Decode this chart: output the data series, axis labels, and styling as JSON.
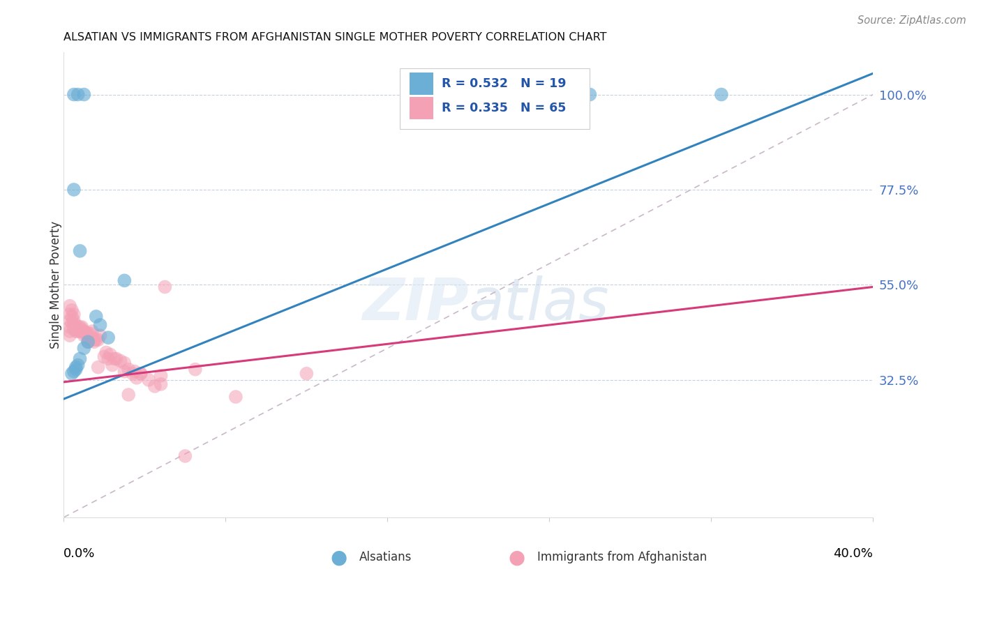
{
  "title": "ALSATIAN VS IMMIGRANTS FROM AFGHANISTAN SINGLE MOTHER POVERTY CORRELATION CHART",
  "source": "Source: ZipAtlas.com",
  "ylabel": "Single Mother Poverty",
  "ytick_vals": [
    0.325,
    0.55,
    0.775,
    1.0
  ],
  "ytick_labels": [
    "32.5%",
    "55.0%",
    "77.5%",
    "100.0%"
  ],
  "legend_label1": "Alsatians",
  "legend_label2": "Immigrants from Afghanistan",
  "R1": "0.532",
  "N1": "19",
  "R2": "0.335",
  "N2": "65",
  "blue_color": "#6baed6",
  "pink_color": "#f4a0b5",
  "blue_line_color": "#3182bd",
  "pink_line_color": "#d63a7a",
  "blue_x": [
    0.005,
    0.007,
    0.01,
    0.005,
    0.008,
    0.03,
    0.016,
    0.018,
    0.022,
    0.012,
    0.01,
    0.008,
    0.007,
    0.006,
    0.006,
    0.005,
    0.004,
    0.26,
    0.325
  ],
  "blue_y": [
    1.0,
    1.0,
    1.0,
    0.775,
    0.63,
    0.56,
    0.475,
    0.455,
    0.425,
    0.415,
    0.4,
    0.375,
    0.36,
    0.355,
    0.35,
    0.345,
    0.34,
    1.0,
    1.0
  ],
  "pink_x": [
    0.003,
    0.003,
    0.003,
    0.003,
    0.003,
    0.003,
    0.004,
    0.004,
    0.004,
    0.005,
    0.005,
    0.005,
    0.005,
    0.006,
    0.006,
    0.006,
    0.007,
    0.007,
    0.008,
    0.008,
    0.009,
    0.009,
    0.009,
    0.01,
    0.01,
    0.01,
    0.011,
    0.012,
    0.012,
    0.013,
    0.013,
    0.014,
    0.014,
    0.015,
    0.015,
    0.016,
    0.017,
    0.017,
    0.018,
    0.02,
    0.021,
    0.022,
    0.023,
    0.025,
    0.026,
    0.028,
    0.03,
    0.032,
    0.034,
    0.035,
    0.036,
    0.038,
    0.042,
    0.045,
    0.048,
    0.03,
    0.038,
    0.05,
    0.024,
    0.048,
    0.032,
    0.06,
    0.12,
    0.085,
    0.065
  ],
  "pink_y": [
    0.5,
    0.48,
    0.465,
    0.45,
    0.44,
    0.43,
    0.49,
    0.475,
    0.46,
    0.48,
    0.465,
    0.455,
    0.445,
    0.455,
    0.445,
    0.44,
    0.445,
    0.44,
    0.45,
    0.44,
    0.45,
    0.445,
    0.44,
    0.44,
    0.435,
    0.43,
    0.435,
    0.435,
    0.415,
    0.435,
    0.42,
    0.44,
    0.425,
    0.42,
    0.415,
    0.42,
    0.42,
    0.355,
    0.43,
    0.38,
    0.39,
    0.375,
    0.385,
    0.375,
    0.375,
    0.37,
    0.365,
    0.35,
    0.34,
    0.345,
    0.33,
    0.34,
    0.325,
    0.31,
    0.315,
    0.345,
    0.34,
    0.545,
    0.36,
    0.335,
    0.29,
    0.145,
    0.34,
    0.285,
    0.35
  ],
  "xmin": 0.0,
  "xmax": 0.4,
  "ymin": 0.0,
  "ymax": 1.1,
  "blue_trend_x0": 0.0,
  "blue_trend_y0": 0.28,
  "blue_trend_x1": 0.4,
  "blue_trend_y1": 1.05,
  "pink_trend_x0": 0.0,
  "pink_trend_y0": 0.32,
  "pink_trend_x1": 0.4,
  "pink_trend_y1": 0.545,
  "ref_line_x0": 0.0,
  "ref_line_y0": 0.0,
  "ref_line_x1": 0.4,
  "ref_line_y1": 1.0
}
